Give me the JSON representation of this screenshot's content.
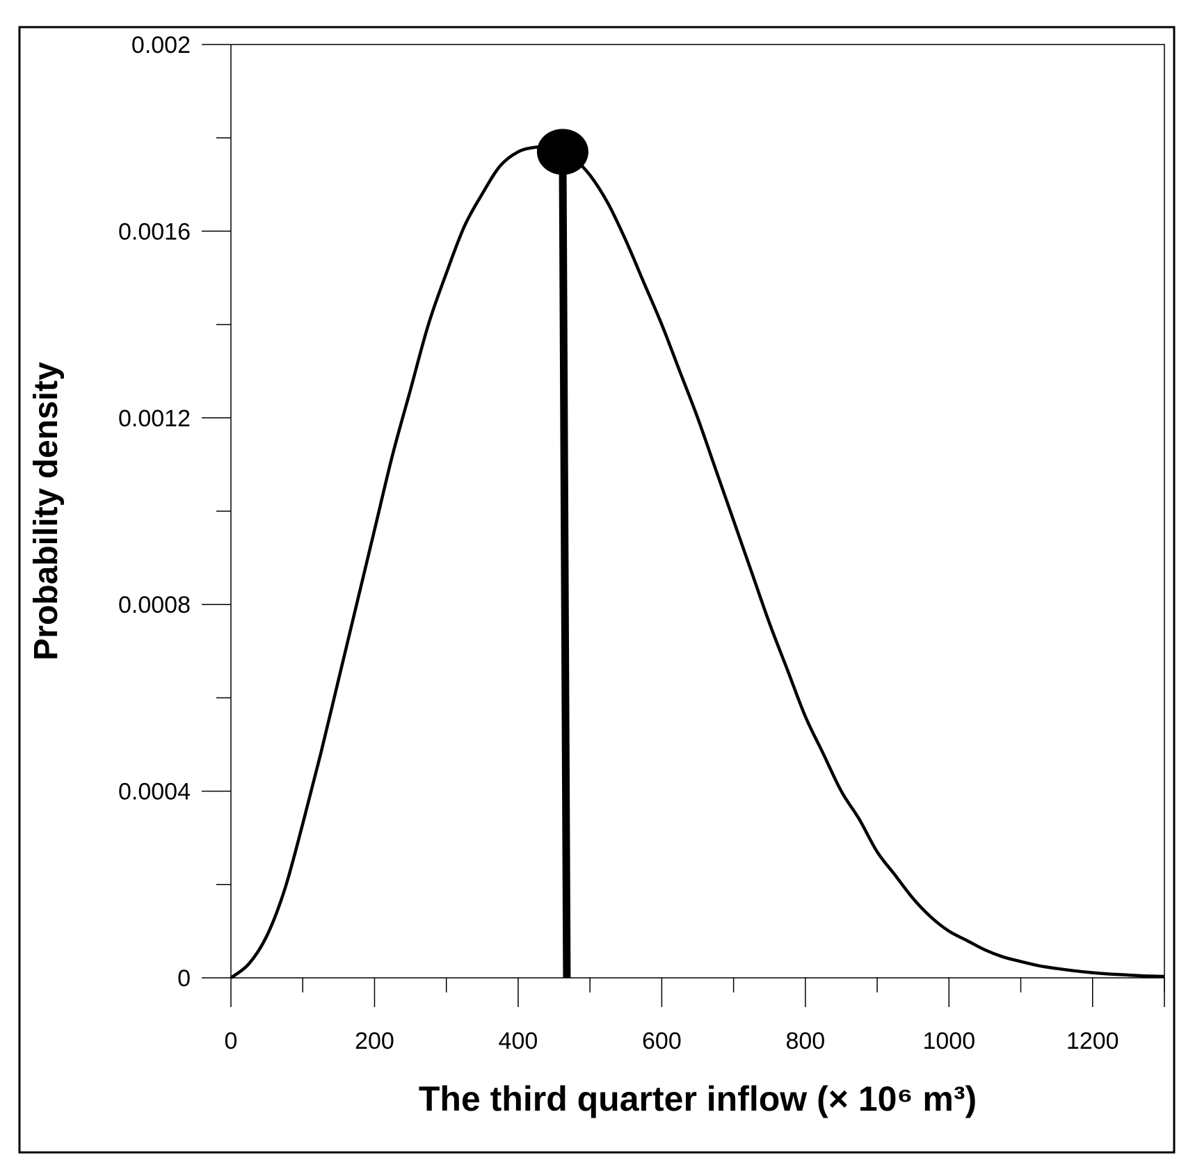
{
  "chart_data": {
    "type": "line",
    "xlabel": "The third quarter inflow (× 10⁶ m³)",
    "ylabel": "Probability density",
    "xlim": [
      0,
      1300
    ],
    "ylim": [
      0,
      0.002
    ],
    "x_ticks": [
      "0",
      "200",
      "400",
      "600",
      "800",
      "1000",
      "1200"
    ],
    "y_ticks": [
      "0",
      "0.0004",
      "0.0008",
      "0.0012",
      "0.0016",
      "0.002"
    ],
    "grid": false,
    "series": [
      {
        "x": [
          0,
          25,
          50,
          75,
          100,
          125,
          150,
          175,
          200,
          225,
          250,
          275,
          300,
          325,
          350,
          375,
          400,
          425,
          450,
          462,
          475,
          500,
          525,
          550,
          575,
          600,
          625,
          650,
          675,
          700,
          725,
          750,
          775,
          800,
          825,
          850,
          875,
          900,
          925,
          950,
          975,
          1000,
          1025,
          1050,
          1075,
          1100,
          1125,
          1150,
          1175,
          1200,
          1225,
          1250,
          1275,
          1300
        ],
        "y": [
          0,
          3e-05,
          9e-05,
          0.00019,
          0.00033,
          0.00048,
          0.00064,
          0.0008,
          0.00096,
          0.00112,
          0.00126,
          0.0014,
          0.00151,
          0.00161,
          0.00168,
          0.00174,
          0.00177,
          0.00178,
          0.00178,
          0.00177,
          0.00176,
          0.00172,
          0.00166,
          0.00158,
          0.00149,
          0.0014,
          0.0013,
          0.0012,
          0.00109,
          0.00098,
          0.00087,
          0.00076,
          0.00066,
          0.00056,
          0.00048,
          0.0004,
          0.00034,
          0.00027,
          0.00022,
          0.00017,
          0.00013,
          0.0001,
          8e-05,
          6e-05,
          4.5e-05,
          3.5e-05,
          2.6e-05,
          2e-05,
          1.5e-05,
          1.1e-05,
          8e-06,
          6e-06,
          4e-06,
          3e-06
        ]
      }
    ],
    "annotations": [
      {
        "type": "vertical-line-with-dot",
        "x": 462,
        "y": 0.00177
      }
    ]
  }
}
